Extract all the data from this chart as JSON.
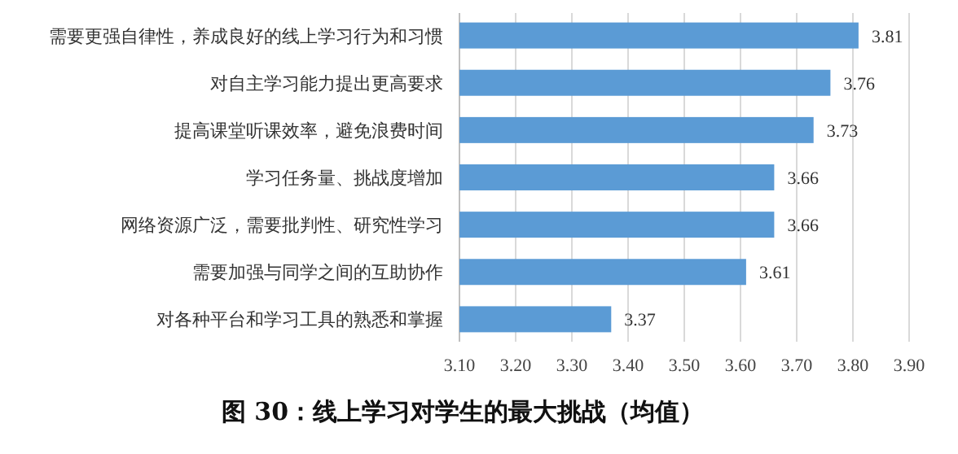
{
  "chart_data": {
    "type": "bar",
    "orientation": "horizontal",
    "title": "图 30：线上学习对学生的最大挑战（均值）",
    "categories": [
      "需要更强自律性，养成良好的线上学习行为和习惯",
      "对自主学习能力提出更高要求",
      "提高课堂听课效率，避免浪费时间",
      "学习任务量、挑战度增加",
      "网络资源广泛，需要批判性、研究性学习",
      "需要加强与同学之间的互助协作",
      "对各种平台和学习工具的熟悉和掌握"
    ],
    "values": [
      3.81,
      3.76,
      3.73,
      3.66,
      3.66,
      3.61,
      3.37
    ],
    "color": "#5b9bd5",
    "xlim": [
      3.1,
      3.9
    ],
    "xticks": [
      {
        "value": 3.1,
        "label": "3.10"
      },
      {
        "value": 3.2,
        "label": "3.20"
      },
      {
        "value": 3.3,
        "label": "3.30"
      },
      {
        "value": 3.4,
        "label": "3.40"
      },
      {
        "value": 3.5,
        "label": "3.50"
      },
      {
        "value": 3.6,
        "label": "3.60"
      },
      {
        "value": 3.7,
        "label": "3.70"
      },
      {
        "value": 3.8,
        "label": "3.80"
      },
      {
        "value": 3.9,
        "label": "3.90"
      }
    ],
    "grid": "x",
    "data_labels": true
  }
}
